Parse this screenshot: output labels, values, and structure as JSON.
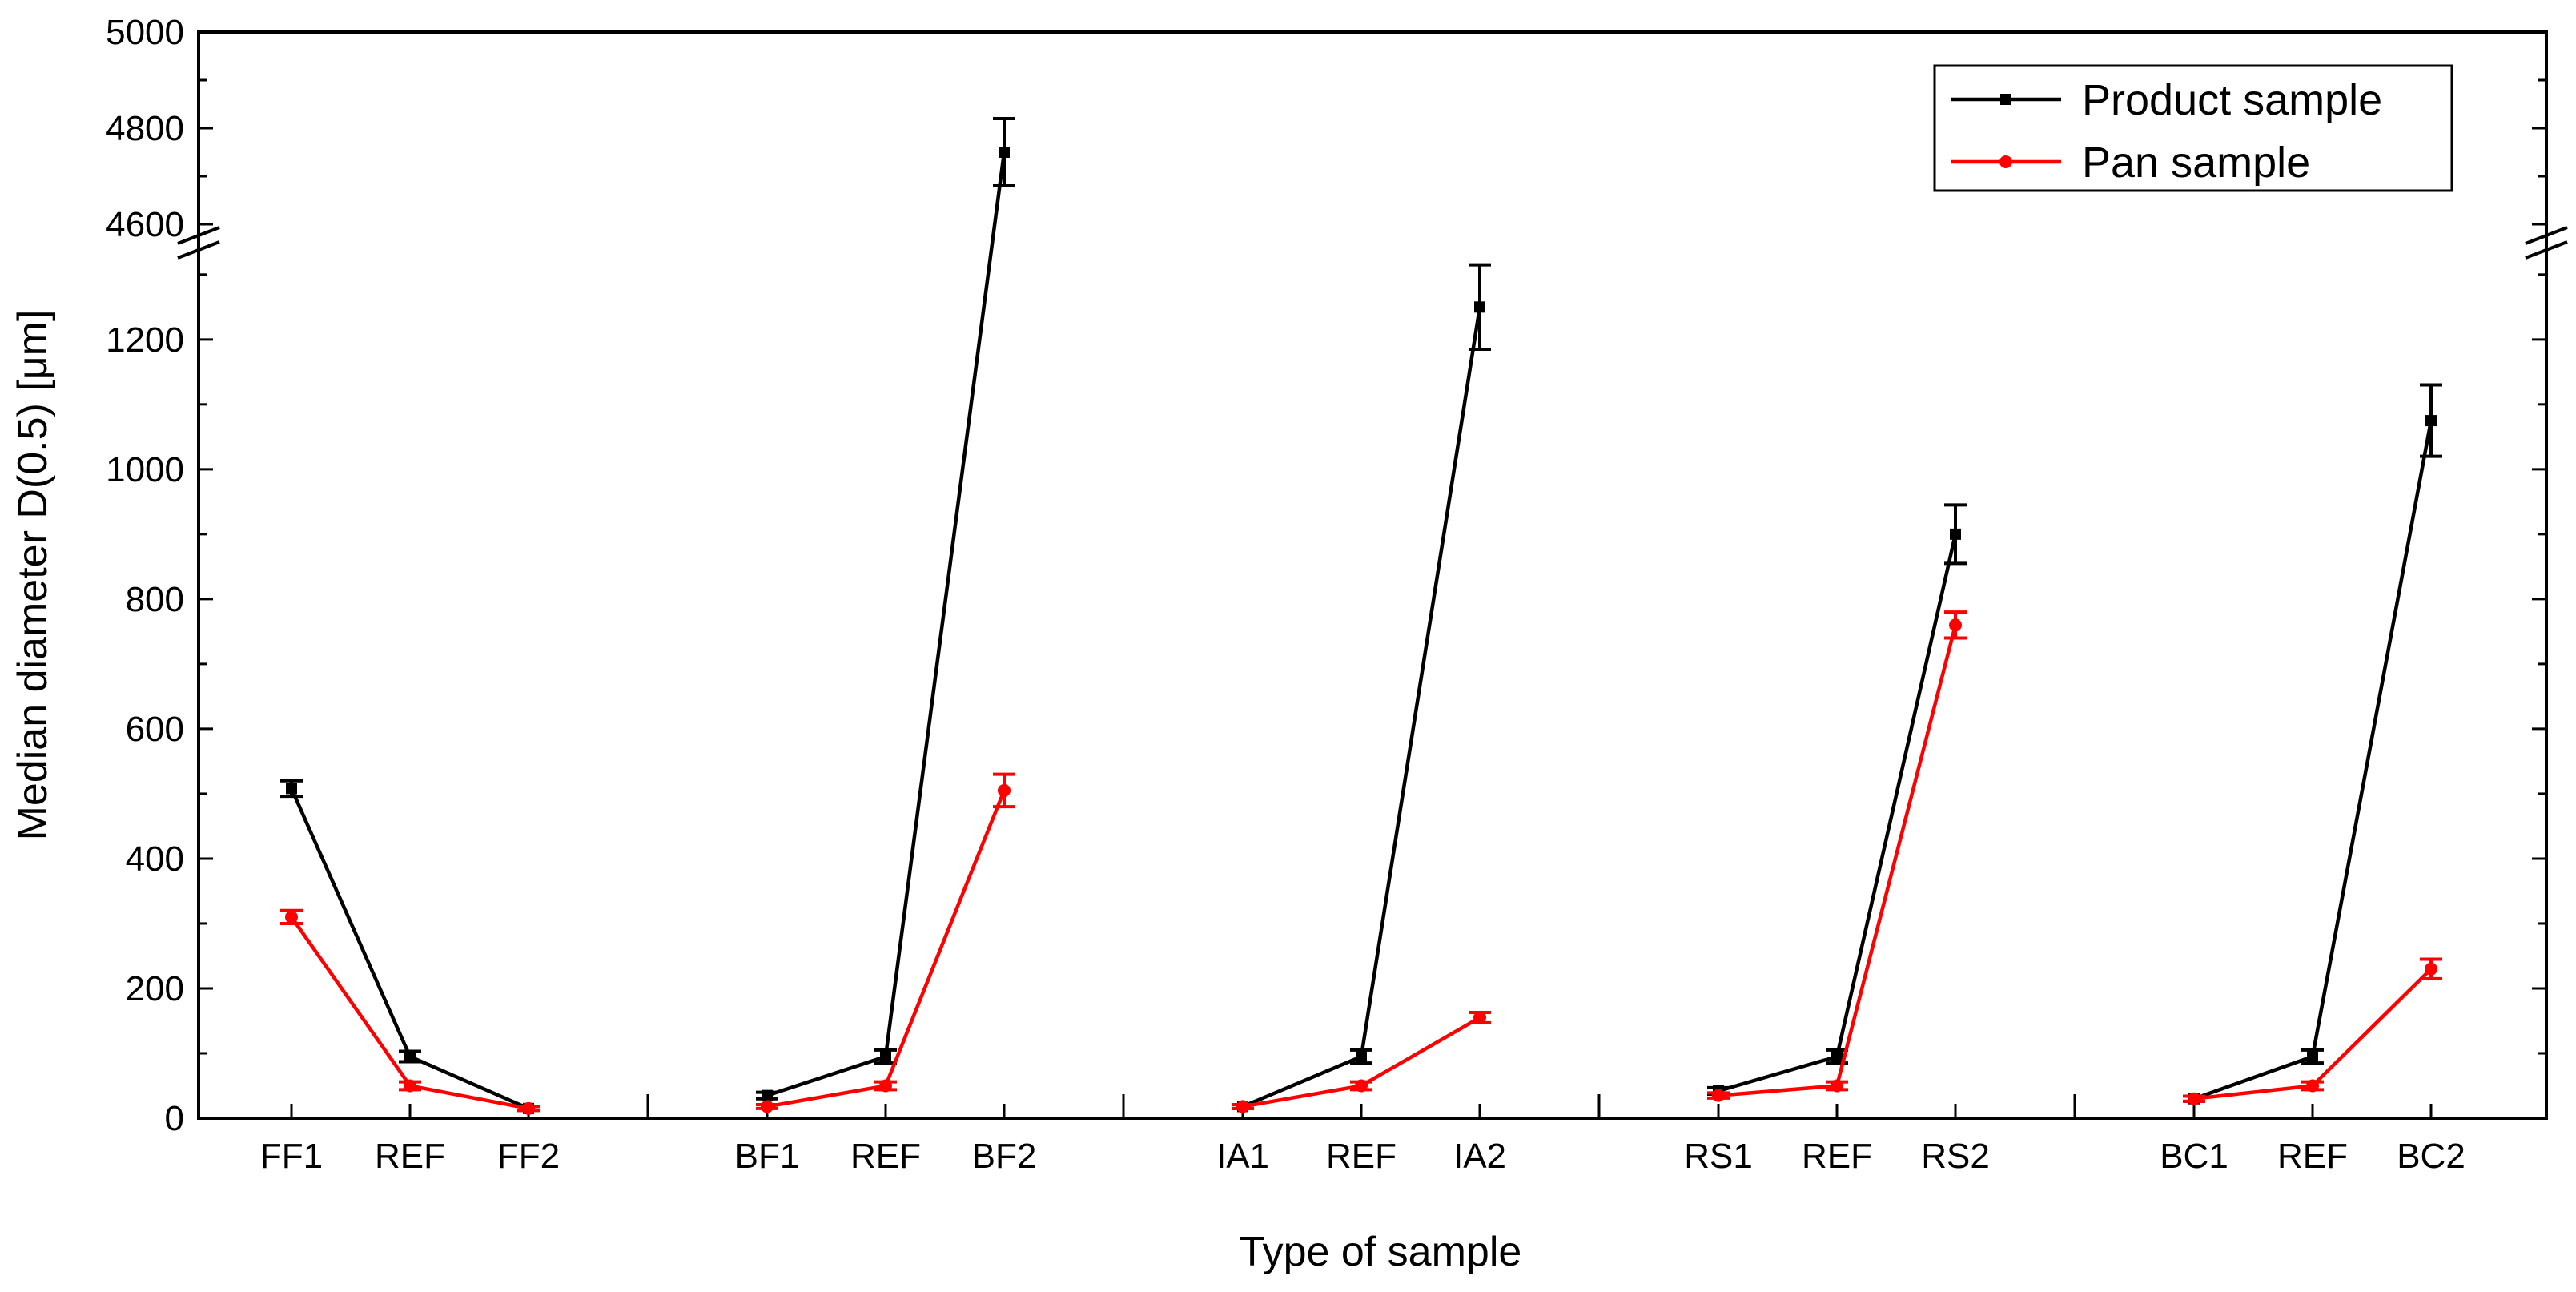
{
  "chart_data": {
    "type": "line",
    "title": "",
    "xlabel": "Type of sample",
    "ylabel": "Median diameter D(0.5) [μm]",
    "y_axis_break": {
      "lower_range": [
        0,
        1380
      ],
      "upper_range": [
        4520,
        5000
      ]
    },
    "yticks_lower": [
      0,
      200,
      400,
      600,
      800,
      1000,
      1200
    ],
    "yticks_upper": [
      4600,
      4800,
      5000
    ],
    "groups": [
      {
        "name": "FF",
        "categories": [
          "FF1",
          "REF",
          "FF2"
        ]
      },
      {
        "name": "BF",
        "categories": [
          "BF1",
          "REF",
          "BF2"
        ]
      },
      {
        "name": "IA",
        "categories": [
          "IA1",
          "REF",
          "IA2"
        ]
      },
      {
        "name": "RS",
        "categories": [
          "RS1",
          "REF",
          "RS2"
        ]
      },
      {
        "name": "BC",
        "categories": [
          "BC1",
          "REF",
          "BC2"
        ]
      }
    ],
    "legend": {
      "position": "top-right",
      "entries": [
        "Product sample",
        "Pan sample"
      ]
    },
    "series": [
      {
        "name": "Product sample",
        "color": "#000000",
        "marker": "square",
        "values": [
          [
            508,
            95,
            15
          ],
          [
            35,
            95,
            4750
          ],
          [
            18,
            95,
            1250
          ],
          [
            42,
            95,
            900
          ],
          [
            30,
            95,
            1075
          ]
        ],
        "errors": [
          [
            12,
            8,
            3
          ],
          [
            5,
            10,
            70
          ],
          [
            3,
            10,
            65
          ],
          [
            5,
            10,
            45
          ],
          [
            4,
            10,
            55
          ]
        ]
      },
      {
        "name": "Pan sample",
        "color": "#ff0000",
        "marker": "circle",
        "values": [
          [
            310,
            50,
            15
          ],
          [
            18,
            50,
            505
          ],
          [
            18,
            50,
            155
          ],
          [
            35,
            50,
            760
          ],
          [
            30,
            50,
            230
          ]
        ],
        "errors": [
          [
            10,
            6,
            3
          ],
          [
            3,
            6,
            25
          ],
          [
            3,
            6,
            8
          ],
          [
            4,
            6,
            20
          ],
          [
            4,
            6,
            15
          ]
        ]
      }
    ]
  }
}
